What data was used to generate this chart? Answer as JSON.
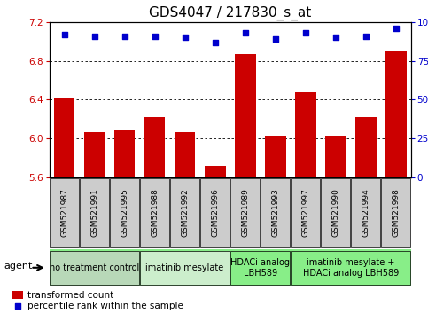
{
  "title": "GDS4047 / 217830_s_at",
  "samples": [
    "GSM521987",
    "GSM521991",
    "GSM521995",
    "GSM521988",
    "GSM521992",
    "GSM521996",
    "GSM521989",
    "GSM521993",
    "GSM521997",
    "GSM521990",
    "GSM521994",
    "GSM521998"
  ],
  "bar_values": [
    6.42,
    6.07,
    6.08,
    6.22,
    6.07,
    5.72,
    6.87,
    6.03,
    6.48,
    6.03,
    6.22,
    6.9
  ],
  "scatter_values": [
    92,
    91,
    91,
    91,
    90,
    87,
    93,
    89,
    93,
    90,
    91,
    96
  ],
  "ylim_left": [
    5.6,
    7.2
  ],
  "ylim_right": [
    0,
    100
  ],
  "yticks_left": [
    5.6,
    6.0,
    6.4,
    6.8,
    7.2
  ],
  "yticks_right": [
    0,
    25,
    50,
    75,
    100
  ],
  "ytick_labels_right": [
    "0",
    "25",
    "50",
    "75",
    "100%"
  ],
  "grid_values": [
    6.0,
    6.4,
    6.8
  ],
  "bar_color": "#cc0000",
  "scatter_color": "#0000cc",
  "groups": [
    {
      "label": "no treatment control",
      "start": 0,
      "end": 3,
      "color": "#b8d8b8"
    },
    {
      "label": "imatinib mesylate",
      "start": 3,
      "end": 6,
      "color": "#cceecc"
    },
    {
      "label": "HDACi analog\nLBH589",
      "start": 6,
      "end": 8,
      "color": "#88ee88"
    },
    {
      "label": "imatinib mesylate +\nHDACi analog LBH589",
      "start": 8,
      "end": 12,
      "color": "#88ee88"
    }
  ],
  "agent_label": "agent",
  "legend_bar_label": "transformed count",
  "legend_scatter_label": "percentile rank within the sample",
  "sample_bg_color": "#cccccc",
  "title_fontsize": 11,
  "tick_fontsize": 7.5,
  "group_fontsize": 7,
  "xlabel_fontsize": 6.5
}
